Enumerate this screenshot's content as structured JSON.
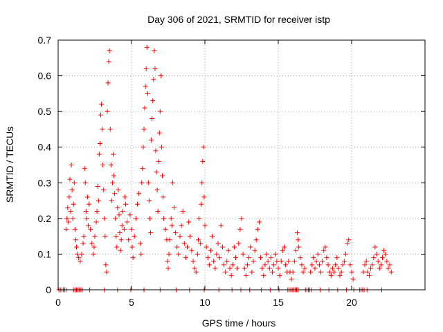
{
  "chart_data": {
    "type": "scatter",
    "title": "Day 306 of 2021, SRMTID for receiver istp",
    "xlabel": "GPS time / hours",
    "ylabel": "SRMTID / TECUs",
    "xlim": [
      0,
      25
    ],
    "ylim": [
      0,
      0.7
    ],
    "xticks": [
      0,
      5,
      10,
      15,
      20
    ],
    "xtick_labels": [
      "0",
      "5",
      "10",
      "15",
      "20"
    ],
    "yticks": [
      0,
      0.1,
      0.2,
      0.3,
      0.4,
      0.5,
      0.6,
      0.7
    ],
    "ytick_labels": [
      "0",
      "0.1",
      "0.2",
      "0.3",
      "0.4",
      "0.5",
      "0.6",
      "0.7"
    ],
    "grid": true,
    "marker": "+",
    "color": "#ff0000",
    "series": [
      {
        "name": "SRMTID",
        "points": [
          [
            0.55,
            0.17
          ],
          [
            0.6,
            0.2
          ],
          [
            0.65,
            0.23
          ],
          [
            0.7,
            0.19
          ],
          [
            0.75,
            0.26
          ],
          [
            0.8,
            0.31
          ],
          [
            0.85,
            0.22
          ],
          [
            0.9,
            0.35
          ],
          [
            0.95,
            0.28
          ],
          [
            1.0,
            0.2
          ],
          [
            1.05,
            0.24
          ],
          [
            1.1,
            0.3
          ],
          [
            1.15,
            0.17
          ],
          [
            1.2,
            0.14
          ],
          [
            1.25,
            0.12
          ],
          [
            1.3,
            0.1
          ],
          [
            1.4,
            0.09
          ],
          [
            1.5,
            0.08
          ],
          [
            1.6,
            0.1
          ],
          [
            1.7,
            0.13
          ],
          [
            1.75,
            0.15
          ],
          [
            1.8,
            0.34
          ],
          [
            1.85,
            0.3
          ],
          [
            1.9,
            0.22
          ],
          [
            1.95,
            0.2
          ],
          [
            2.0,
            0.26
          ],
          [
            2.05,
            0.18
          ],
          [
            2.1,
            0.24
          ],
          [
            2.2,
            0.17
          ],
          [
            2.3,
            0.13
          ],
          [
            2.4,
            0.1
          ],
          [
            2.45,
            0.12
          ],
          [
            2.5,
            0.15
          ],
          [
            2.6,
            0.19
          ],
          [
            2.65,
            0.22
          ],
          [
            2.7,
            0.29
          ],
          [
            2.75,
            0.25
          ],
          [
            2.8,
            0.38
          ],
          [
            2.85,
            0.41
          ],
          [
            2.9,
            0.49
          ],
          [
            2.95,
            0.52
          ],
          [
            3.0,
            0.45
          ],
          [
            3.05,
            0.35
          ],
          [
            3.1,
            0.28
          ],
          [
            3.15,
            0.2
          ],
          [
            3.2,
            0.15
          ],
          [
            3.25,
            0.07
          ],
          [
            3.3,
            0.05
          ],
          [
            3.35,
            0.5
          ],
          [
            3.4,
            0.58
          ],
          [
            3.45,
            0.64
          ],
          [
            3.5,
            0.67
          ],
          [
            3.55,
            0.45
          ],
          [
            3.6,
            0.35
          ],
          [
            3.65,
            0.25
          ],
          [
            3.7,
            0.3
          ],
          [
            3.75,
            0.38
          ],
          [
            3.8,
            0.32
          ],
          [
            3.85,
            0.27
          ],
          [
            3.9,
            0.2
          ],
          [
            3.95,
            0.15
          ],
          [
            4.0,
            0.12
          ],
          [
            4.05,
            0.23
          ],
          [
            4.1,
            0.28
          ],
          [
            4.15,
            0.21
          ],
          [
            4.2,
            0.16
          ],
          [
            4.25,
            0.11
          ],
          [
            4.3,
            0.14
          ],
          [
            4.35,
            0.18
          ],
          [
            4.4,
            0.22
          ],
          [
            4.5,
            0.17
          ],
          [
            4.55,
            0.26
          ],
          [
            4.6,
            0.24
          ],
          [
            4.7,
            0.19
          ],
          [
            4.8,
            0.14
          ],
          [
            4.9,
            0.21
          ],
          [
            5.0,
            0.17
          ],
          [
            5.05,
            0.12
          ],
          [
            5.1,
            0.09
          ],
          [
            5.2,
            0.15
          ],
          [
            5.3,
            0.2
          ],
          [
            5.4,
            0.24
          ],
          [
            5.5,
            0.27
          ],
          [
            5.6,
            0.13
          ],
          [
            5.65,
            0.1
          ],
          [
            5.7,
            0.3
          ],
          [
            5.75,
            0.34
          ],
          [
            5.8,
            0.4
          ],
          [
            5.85,
            0.45
          ],
          [
            5.9,
            0.51
          ],
          [
            5.95,
            0.57
          ],
          [
            6.0,
            0.62
          ],
          [
            6.05,
            0.68
          ],
          [
            6.1,
            0.55
          ],
          [
            6.15,
            0.3
          ],
          [
            6.2,
            0.25
          ],
          [
            6.25,
            0.2
          ],
          [
            6.3,
            0.16
          ],
          [
            6.35,
            0.42
          ],
          [
            6.4,
            0.48
          ],
          [
            6.45,
            0.53
          ],
          [
            6.5,
            0.59
          ],
          [
            6.55,
            0.67
          ],
          [
            6.6,
            0.62
          ],
          [
            6.65,
            0.39
          ],
          [
            6.7,
            0.33
          ],
          [
            6.75,
            0.28
          ],
          [
            6.8,
            0.22
          ],
          [
            6.85,
            0.36
          ],
          [
            6.9,
            0.44
          ],
          [
            6.95,
            0.5
          ],
          [
            7.0,
            0.6
          ],
          [
            7.05,
            0.4
          ],
          [
            7.1,
            0.32
          ],
          [
            7.15,
            0.26
          ],
          [
            7.2,
            0.2
          ],
          [
            7.3,
            0.17
          ],
          [
            7.4,
            0.14
          ],
          [
            7.45,
            0.08
          ],
          [
            7.5,
            0.06
          ],
          [
            7.55,
            0.1
          ],
          [
            7.6,
            0.14
          ],
          [
            7.7,
            0.2
          ],
          [
            7.75,
            0.18
          ],
          [
            7.8,
            0.3
          ],
          [
            7.9,
            0.23
          ],
          [
            8.0,
            0.16
          ],
          [
            8.1,
            0.12
          ],
          [
            8.2,
            0.1
          ],
          [
            8.3,
            0.15
          ],
          [
            8.4,
            0.18
          ],
          [
            8.5,
            0.22
          ],
          [
            8.6,
            0.13
          ],
          [
            8.7,
            0.09
          ],
          [
            8.8,
            0.12
          ],
          [
            8.9,
            0.19
          ],
          [
            9.0,
            0.15
          ],
          [
            9.1,
            0.11
          ],
          [
            9.2,
            0.08
          ],
          [
            9.3,
            0.06
          ],
          [
            9.4,
            0.05
          ],
          [
            9.5,
            0.1
          ],
          [
            9.55,
            0.14
          ],
          [
            9.6,
            0.2
          ],
          [
            9.7,
            0.13
          ],
          [
            9.75,
            0.24
          ],
          [
            9.8,
            0.3
          ],
          [
            9.85,
            0.36
          ],
          [
            9.9,
            0.4
          ],
          [
            9.95,
            0.26
          ],
          [
            10.0,
            0.18
          ],
          [
            10.1,
            0.12
          ],
          [
            10.2,
            0.09
          ],
          [
            10.3,
            0.07
          ],
          [
            10.4,
            0.11
          ],
          [
            10.5,
            0.15
          ],
          [
            10.6,
            0.08
          ],
          [
            10.7,
            0.06
          ],
          [
            10.8,
            0.1
          ],
          [
            10.9,
            0.13
          ],
          [
            11.0,
            0.09
          ],
          [
            11.1,
            0.18
          ],
          [
            11.2,
            0.12
          ],
          [
            11.3,
            0.07
          ],
          [
            11.4,
            0.05
          ],
          [
            11.5,
            0.08
          ],
          [
            11.6,
            0.11
          ],
          [
            11.7,
            0.06
          ],
          [
            11.8,
            0.04
          ],
          [
            11.9,
            0.07
          ],
          [
            12.0,
            0.12
          ],
          [
            12.1,
            0.09
          ],
          [
            12.2,
            0.06
          ],
          [
            12.3,
            0.13
          ],
          [
            12.4,
            0.17
          ],
          [
            12.5,
            0.2
          ],
          [
            12.6,
            0.1
          ],
          [
            12.7,
            0.06
          ],
          [
            12.8,
            0.04
          ],
          [
            12.9,
            0.07
          ],
          [
            13.0,
            0.09
          ],
          [
            13.1,
            0.12
          ],
          [
            13.2,
            0.05
          ],
          [
            13.3,
            0.08
          ],
          [
            13.4,
            0.11
          ],
          [
            13.5,
            0.14
          ],
          [
            13.6,
            0.17
          ],
          [
            13.7,
            0.19
          ],
          [
            13.8,
            0.09
          ],
          [
            13.9,
            0.06
          ],
          [
            14.0,
            0.04
          ],
          [
            14.1,
            0.07
          ],
          [
            14.2,
            0.1
          ],
          [
            14.3,
            0.08
          ],
          [
            14.4,
            0.06
          ],
          [
            14.5,
            0.09
          ],
          [
            14.6,
            0.05
          ],
          [
            14.7,
            0.07
          ],
          [
            14.8,
            0.1
          ],
          [
            14.9,
            0.08
          ],
          [
            15.0,
            0.06
          ],
          [
            15.1,
            0.04
          ],
          [
            15.2,
            0.08
          ],
          [
            15.3,
            0.11
          ],
          [
            15.4,
            0.12
          ],
          [
            15.5,
            0.07
          ],
          [
            15.6,
            0.05
          ],
          [
            15.7,
            0.08
          ],
          [
            15.8,
            0.05
          ],
          [
            15.9,
            0.03
          ],
          [
            16.0,
            0.05
          ],
          [
            16.1,
            0.08
          ],
          [
            16.2,
            0.11
          ],
          [
            16.3,
            0.16
          ],
          [
            16.35,
            0.14
          ],
          [
            16.4,
            0.12
          ],
          [
            16.5,
            0.09
          ],
          [
            16.6,
            0.07
          ],
          [
            16.7,
            0.05
          ],
          [
            16.8,
            0.06
          ],
          [
            17.2,
            0.05
          ],
          [
            17.3,
            0.07
          ],
          [
            17.4,
            0.09
          ],
          [
            17.5,
            0.06
          ],
          [
            17.6,
            0.08
          ],
          [
            17.7,
            0.1
          ],
          [
            17.8,
            0.07
          ],
          [
            17.9,
            0.05
          ],
          [
            18.0,
            0.08
          ],
          [
            18.1,
            0.11
          ],
          [
            18.2,
            0.12
          ],
          [
            18.3,
            0.09
          ],
          [
            18.4,
            0.07
          ],
          [
            18.5,
            0.05
          ],
          [
            18.6,
            0.04
          ],
          [
            18.7,
            0.06
          ],
          [
            18.8,
            0.05
          ],
          [
            18.9,
            0.07
          ],
          [
            19.0,
            0.09
          ],
          [
            19.1,
            0.06
          ],
          [
            19.2,
            0.04
          ],
          [
            19.3,
            0.05
          ],
          [
            19.4,
            0.07
          ],
          [
            19.5,
            0.08
          ],
          [
            19.6,
            0.1
          ],
          [
            19.7,
            0.13
          ],
          [
            19.8,
            0.14
          ],
          [
            19.9,
            0.07
          ],
          [
            20.0,
            0.05
          ],
          [
            20.1,
            0.03
          ],
          [
            20.8,
            0.05
          ],
          [
            20.9,
            0.07
          ],
          [
            21.0,
            0.08
          ],
          [
            21.1,
            0.05
          ],
          [
            21.2,
            0.04
          ],
          [
            21.3,
            0.06
          ],
          [
            21.4,
            0.07
          ],
          [
            21.5,
            0.09
          ],
          [
            21.6,
            0.12
          ],
          [
            21.7,
            0.1
          ],
          [
            21.8,
            0.08
          ],
          [
            21.9,
            0.06
          ],
          [
            22.0,
            0.07
          ],
          [
            22.1,
            0.09
          ],
          [
            22.2,
            0.11
          ],
          [
            22.3,
            0.1
          ],
          [
            22.4,
            0.08
          ],
          [
            22.5,
            0.06
          ],
          [
            22.6,
            0.07
          ],
          [
            22.7,
            0.05
          ]
        ]
      },
      {
        "name": "zero-line",
        "points": [
          [
            0.05,
            0
          ],
          [
            0.15,
            0
          ],
          [
            0.25,
            0
          ],
          [
            0.35,
            0
          ],
          [
            0.45,
            0
          ],
          [
            0.55,
            0
          ],
          [
            1.05,
            0
          ],
          [
            1.15,
            0
          ],
          [
            1.25,
            0
          ],
          [
            1.35,
            0
          ],
          [
            1.45,
            0
          ],
          [
            1.55,
            0
          ],
          [
            1.65,
            0
          ],
          [
            2.15,
            0
          ],
          [
            3.15,
            0
          ],
          [
            4.05,
            0
          ],
          [
            4.95,
            0
          ],
          [
            5.85,
            0
          ],
          [
            6.95,
            0
          ],
          [
            8.05,
            0
          ],
          [
            8.95,
            0
          ],
          [
            9.95,
            0
          ],
          [
            10.95,
            0
          ],
          [
            11.85,
            0
          ],
          [
            12.45,
            0
          ],
          [
            13.05,
            0
          ],
          [
            13.85,
            0
          ],
          [
            14.45,
            0
          ],
          [
            15.05,
            0
          ],
          [
            15.65,
            0
          ],
          [
            15.75,
            0
          ],
          [
            15.85,
            0
          ],
          [
            15.95,
            0
          ],
          [
            16.05,
            0
          ],
          [
            16.15,
            0
          ],
          [
            16.25,
            0
          ],
          [
            16.35,
            0
          ],
          [
            16.85,
            0
          ],
          [
            16.95,
            0
          ],
          [
            17.05,
            0
          ],
          [
            17.15,
            0
          ],
          [
            17.25,
            0
          ],
          [
            17.85,
            0
          ],
          [
            18.45,
            0
          ],
          [
            19.05,
            0
          ],
          [
            19.65,
            0
          ],
          [
            20.15,
            0
          ],
          [
            20.55,
            0
          ],
          [
            20.65,
            0
          ],
          [
            20.75,
            0
          ],
          [
            20.85,
            0
          ],
          [
            21.05,
            0
          ],
          [
            22.05,
            0
          ]
        ]
      }
    ]
  }
}
